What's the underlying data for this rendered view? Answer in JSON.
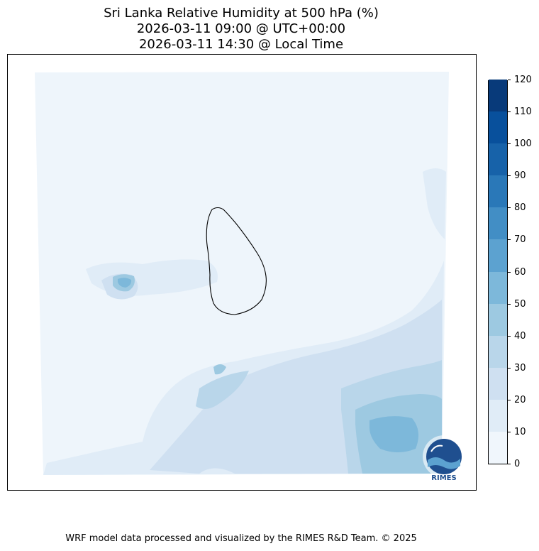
{
  "title": {
    "line1": "Sri Lanka Relative Humidity at 500 hPa (%)",
    "line2": "2026-03-11 09:00 @ UTC+00:00",
    "line3": "2026-03-11 14:30 @ Local Time"
  },
  "colorbar": {
    "ticks": [
      "0",
      "10",
      "20",
      "30",
      "40",
      "50",
      "60",
      "70",
      "80",
      "90",
      "100",
      "110",
      "120"
    ],
    "colors": [
      "#f0f6fc",
      "#e0ecf7",
      "#cfe0f1",
      "#b9d6ea",
      "#9dc9e1",
      "#7db8da",
      "#5ca2d0",
      "#428ec5",
      "#2a78b8",
      "#1762a9",
      "#08509c",
      "#083a7a"
    ]
  },
  "logo": {
    "label": "RIMES",
    "icon": "rimes-logo"
  },
  "footer": "WRF model data processed and visualized by the RIMES R&D Team. © 2025"
}
